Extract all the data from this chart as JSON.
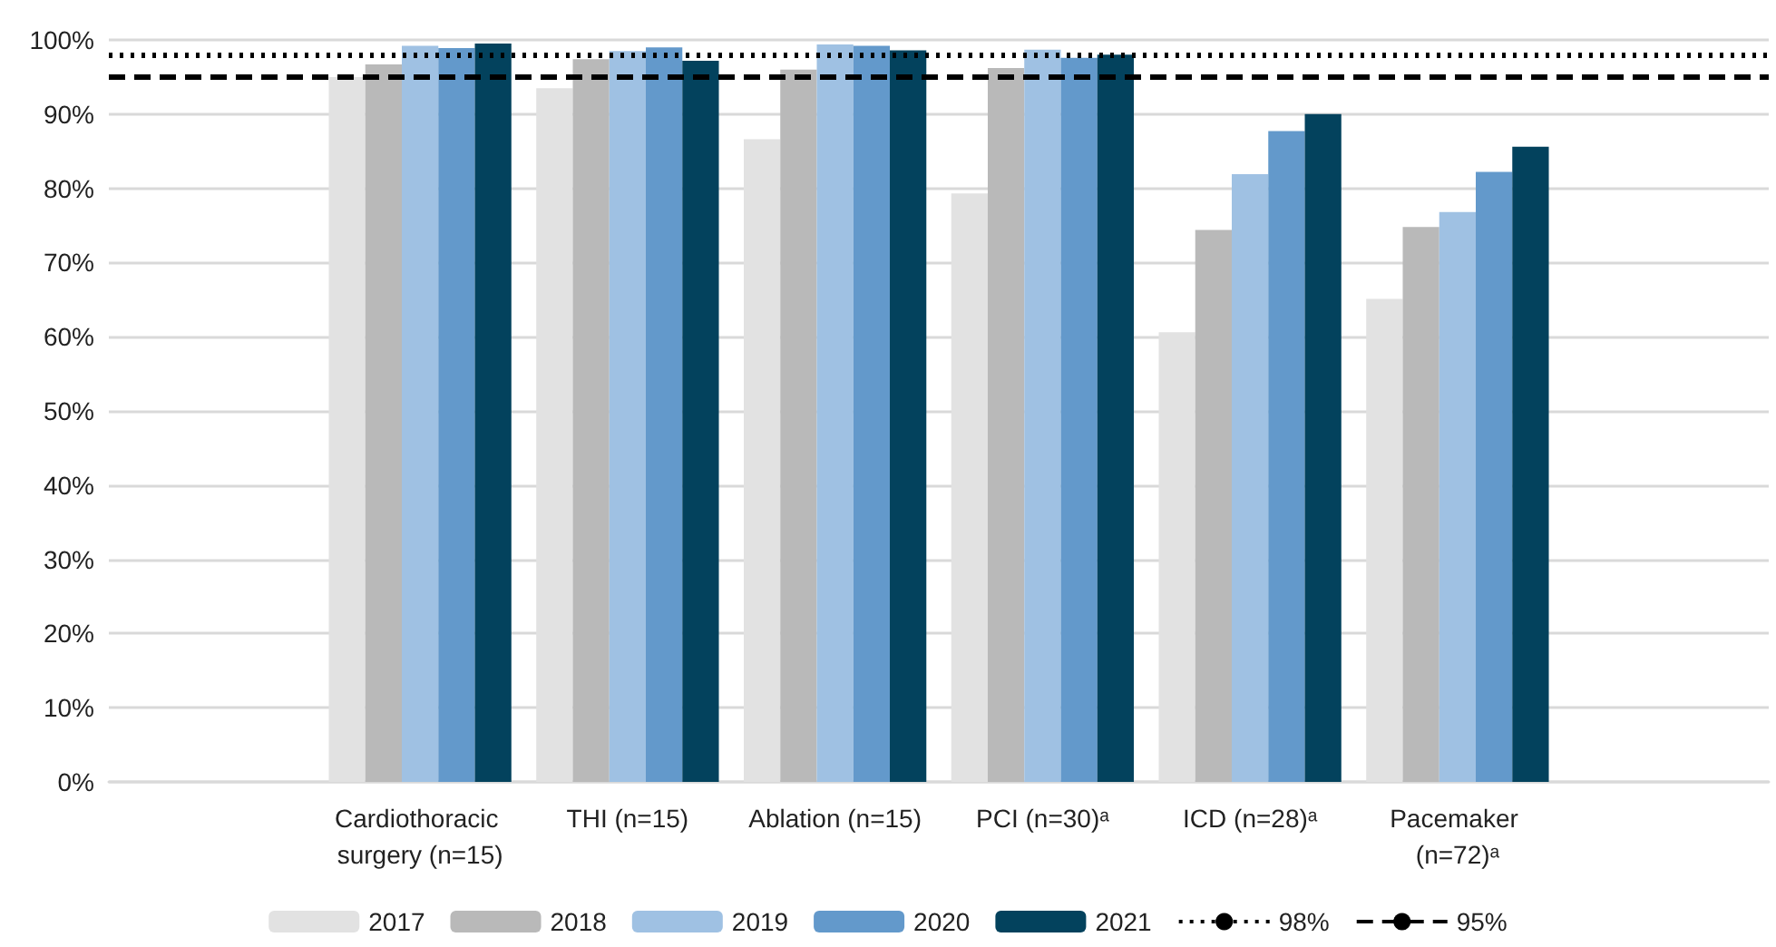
{
  "chart_data": {
    "type": "bar",
    "categories": [
      null,
      "Cardiothoracic surgery (n=15)",
      "THI (n=15)",
      "Ablation (n=15)",
      "PCI (n=30)ᵃ",
      "ICD (n=28)ᵃ",
      "Pacemaker (n=72)ᵃ",
      null
    ],
    "series": [
      {
        "name": "2017",
        "color": "#e2e2e2",
        "values": [
          null,
          95,
          93.5,
          86.6,
          79.3,
          60.6,
          65.1,
          null
        ]
      },
      {
        "name": "2018",
        "color": "#b9b9b9",
        "values": [
          null,
          96.7,
          97.4,
          96,
          96.2,
          74.4,
          74.8,
          null
        ]
      },
      {
        "name": "2019",
        "color": "#9fc1e3",
        "values": [
          null,
          99.2,
          98.5,
          99.4,
          98.7,
          81.9,
          76.8,
          null
        ]
      },
      {
        "name": "2020",
        "color": "#6399cb",
        "values": [
          null,
          98.9,
          99,
          99.2,
          97.6,
          87.7,
          82.2,
          null
        ]
      },
      {
        "name": "2021",
        "color": "#03425d",
        "values": [
          null,
          99.5,
          97.2,
          98.6,
          98,
          90,
          85.6,
          null
        ]
      }
    ],
    "ref_lines": [
      {
        "axis": "y",
        "value": 98,
        "label": "98%",
        "color": "#000000",
        "line_style": "dotted"
      },
      {
        "axis": "y",
        "value": 95,
        "label": "95%",
        "color": "#000000",
        "line_style": "dashed"
      }
    ],
    "ylim": [
      0,
      100
    ],
    "yticks": [
      {
        "value": 0,
        "label": "0%"
      },
      {
        "value": 10,
        "label": "10%"
      },
      {
        "value": 20,
        "label": "20%"
      },
      {
        "value": 30,
        "label": "30%"
      },
      {
        "value": 40,
        "label": "40%"
      },
      {
        "value": 50,
        "label": "50%"
      },
      {
        "value": 60,
        "label": "60%"
      },
      {
        "value": 70,
        "label": "70%"
      },
      {
        "value": 80,
        "label": "80%"
      },
      {
        "value": 90,
        "label": "90%"
      },
      {
        "value": 100,
        "label": "100%"
      }
    ],
    "grid": "y",
    "legend": "bottom"
  }
}
